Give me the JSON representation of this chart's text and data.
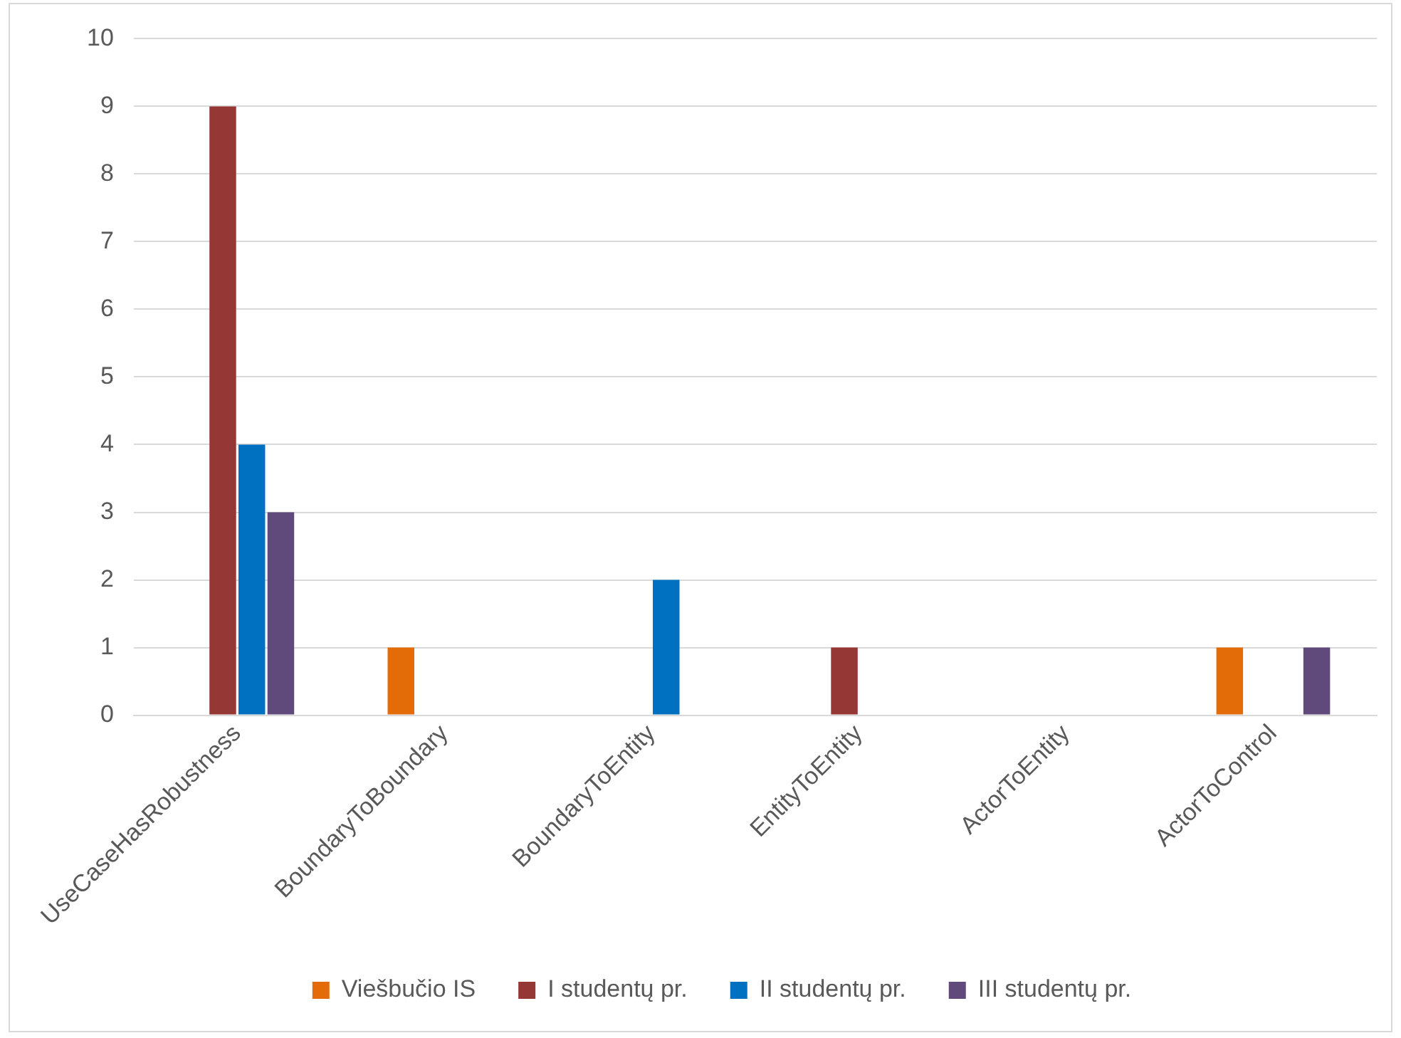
{
  "chart_data": {
    "type": "bar",
    "categories": [
      "UseCaseHasRobustness",
      "BoundaryToBoundary",
      "BoundaryToEntity",
      "EntityToEntity",
      "ActorToEntity",
      "ActorToControl"
    ],
    "series": [
      {
        "name": "Viešbučio IS",
        "color": "#e36c09",
        "values": [
          0,
          1,
          0,
          0,
          0,
          1
        ]
      },
      {
        "name": "I studentų pr.",
        "color": "#953735",
        "values": [
          9,
          0,
          0,
          1,
          0,
          0
        ]
      },
      {
        "name": "II studentų pr.",
        "color": "#0070c0",
        "values": [
          4,
          0,
          2,
          0,
          0,
          0
        ]
      },
      {
        "name": "III studentų pr.",
        "color": "#604a7b",
        "values": [
          3,
          0,
          0,
          0,
          0,
          1
        ]
      }
    ],
    "ylim": [
      0,
      10
    ],
    "yticks": [
      0,
      1,
      2,
      3,
      4,
      5,
      6,
      7,
      8,
      9,
      10
    ],
    "grid": "y",
    "legend": "bottom"
  }
}
